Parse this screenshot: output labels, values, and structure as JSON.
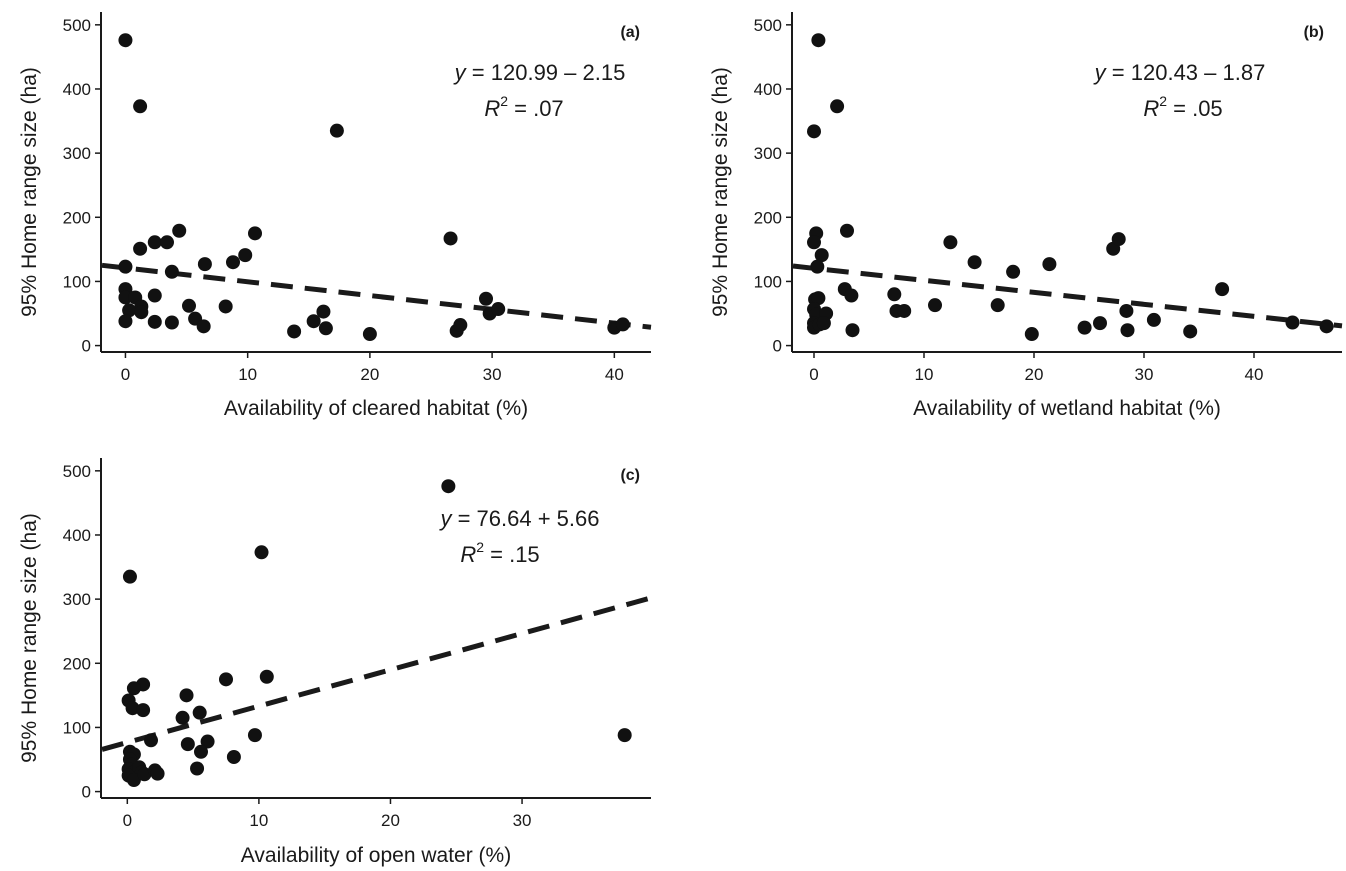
{
  "chart_data": [
    {
      "id": "a",
      "type": "scatter",
      "panel_label": "(a)",
      "xlabel": "Availability of cleared habitat (%)",
      "ylabel": "95% Home range size (ha)",
      "xlim": [
        -2,
        43
      ],
      "ylim": [
        -10,
        520
      ],
      "xticks": [
        0,
        10,
        20,
        30,
        40
      ],
      "yticks": [
        0,
        100,
        200,
        300,
        400,
        500
      ],
      "grid": false,
      "equation": {
        "lhs": "y",
        "rhs": " = 120.99 – 2.15"
      },
      "r2": {
        "label": "R",
        "sup": "2",
        "value": " = .07"
      },
      "trendline": {
        "intercept": 120.99,
        "slope": -2.15,
        "style": "dashed"
      },
      "points": [
        [
          0,
          476
        ],
        [
          1.2,
          373
        ],
        [
          17.3,
          335
        ],
        [
          26.6,
          167
        ],
        [
          10.6,
          175
        ],
        [
          4.4,
          179
        ],
        [
          0,
          123
        ],
        [
          1.2,
          151
        ],
        [
          2.4,
          161
        ],
        [
          3.4,
          161
        ],
        [
          9.8,
          141
        ],
        [
          6.5,
          127
        ],
        [
          8.8,
          130
        ],
        [
          3.8,
          115
        ],
        [
          0,
          88
        ],
        [
          0,
          75
        ],
        [
          0.8,
          75
        ],
        [
          2.4,
          78
        ],
        [
          1.3,
          61
        ],
        [
          5.2,
          62
        ],
        [
          8.2,
          61
        ],
        [
          0.3,
          55
        ],
        [
          1.3,
          52
        ],
        [
          0,
          38
        ],
        [
          2.4,
          37
        ],
        [
          3.8,
          36
        ],
        [
          5.7,
          42
        ],
        [
          6.4,
          30
        ],
        [
          13.8,
          22
        ],
        [
          15.4,
          38
        ],
        [
          16.2,
          53
        ],
        [
          16.4,
          27
        ],
        [
          20,
          18
        ],
        [
          27.1,
          23
        ],
        [
          27.4,
          32
        ],
        [
          29.5,
          73
        ],
        [
          29.8,
          50
        ],
        [
          30.5,
          57
        ],
        [
          40,
          28
        ],
        [
          40.7,
          33
        ]
      ]
    },
    {
      "id": "b",
      "type": "scatter",
      "panel_label": "(b)",
      "xlabel": "Availability of wetland habitat (%)",
      "ylabel": "95% Home range size (ha)",
      "xlim": [
        -2,
        48
      ],
      "ylim": [
        -10,
        520
      ],
      "xticks": [
        0,
        10,
        20,
        30,
        40
      ],
      "yticks": [
        0,
        100,
        200,
        300,
        400,
        500
      ],
      "grid": false,
      "equation": {
        "lhs": "y",
        "rhs": " = 120.43 – 1.87"
      },
      "r2": {
        "label": "R",
        "sup": "2",
        "value": " = .05"
      },
      "trendline": {
        "intercept": 120.43,
        "slope": -1.87,
        "style": "dashed"
      },
      "points": [
        [
          0.4,
          476
        ],
        [
          2.1,
          373
        ],
        [
          0,
          334
        ],
        [
          0.2,
          175
        ],
        [
          0,
          161
        ],
        [
          3,
          179
        ],
        [
          0.7,
          141
        ],
        [
          0.3,
          123
        ],
        [
          0.1,
          72
        ],
        [
          0.4,
          74
        ],
        [
          0,
          57
        ],
        [
          0.2,
          48
        ],
        [
          1.1,
          50
        ],
        [
          0,
          35
        ],
        [
          0,
          28
        ],
        [
          0.5,
          33
        ],
        [
          0.9,
          35
        ],
        [
          2.8,
          88
        ],
        [
          3.4,
          78
        ],
        [
          3.5,
          24
        ],
        [
          7.3,
          80
        ],
        [
          7.5,
          54
        ],
        [
          8.2,
          54
        ],
        [
          11,
          63
        ],
        [
          12.4,
          161
        ],
        [
          14.6,
          130
        ],
        [
          16.7,
          63
        ],
        [
          18.1,
          115
        ],
        [
          19.8,
          18
        ],
        [
          21.4,
          127
        ],
        [
          24.6,
          28
        ],
        [
          26,
          35
        ],
        [
          27.2,
          151
        ],
        [
          27.7,
          166
        ],
        [
          28.4,
          54
        ],
        [
          28.5,
          24
        ],
        [
          30.9,
          40
        ],
        [
          34.2,
          22
        ],
        [
          37.1,
          88
        ],
        [
          43.5,
          36
        ],
        [
          46.6,
          30
        ]
      ]
    },
    {
      "id": "c",
      "type": "scatter",
      "panel_label": "(c)",
      "xlabel": "Availability of open water (%)",
      "ylabel": "95% Home range size (ha)",
      "xlim": [
        -2,
        39.8
      ],
      "ylim": [
        -10,
        520
      ],
      "xticks": [
        0,
        10,
        20,
        30
      ],
      "yticks": [
        0,
        100,
        200,
        300,
        400,
        500
      ],
      "grid": false,
      "equation": {
        "lhs": "y",
        "rhs": " = 76.64 + 5.66"
      },
      "r2": {
        "label": "R",
        "sup": "2",
        "value": " = .15"
      },
      "trendline": {
        "intercept": 76.64,
        "slope": 5.66,
        "style": "dashed"
      },
      "points": [
        [
          24.4,
          476
        ],
        [
          10.2,
          373
        ],
        [
          0.2,
          335
        ],
        [
          10.6,
          179
        ],
        [
          7.5,
          175
        ],
        [
          1.2,
          167
        ],
        [
          0.5,
          161
        ],
        [
          0.1,
          142
        ],
        [
          4.5,
          150
        ],
        [
          0.4,
          130
        ],
        [
          1.2,
          127
        ],
        [
          5.5,
          123
        ],
        [
          4.2,
          115
        ],
        [
          9.7,
          88
        ],
        [
          37.8,
          88
        ],
        [
          1.8,
          80
        ],
        [
          4.6,
          74
        ],
        [
          6.1,
          78
        ],
        [
          0.2,
          62
        ],
        [
          0.5,
          58
        ],
        [
          5.6,
          62
        ],
        [
          8.1,
          54
        ],
        [
          0.2,
          50
        ],
        [
          0.3,
          42
        ],
        [
          0.1,
          35
        ],
        [
          0.5,
          30
        ],
        [
          0.1,
          25
        ],
        [
          0.9,
          38
        ],
        [
          1.1,
          30
        ],
        [
          0.5,
          18
        ],
        [
          1.3,
          27
        ],
        [
          2.1,
          33
        ],
        [
          2.3,
          28
        ],
        [
          5.3,
          36
        ]
      ]
    }
  ]
}
